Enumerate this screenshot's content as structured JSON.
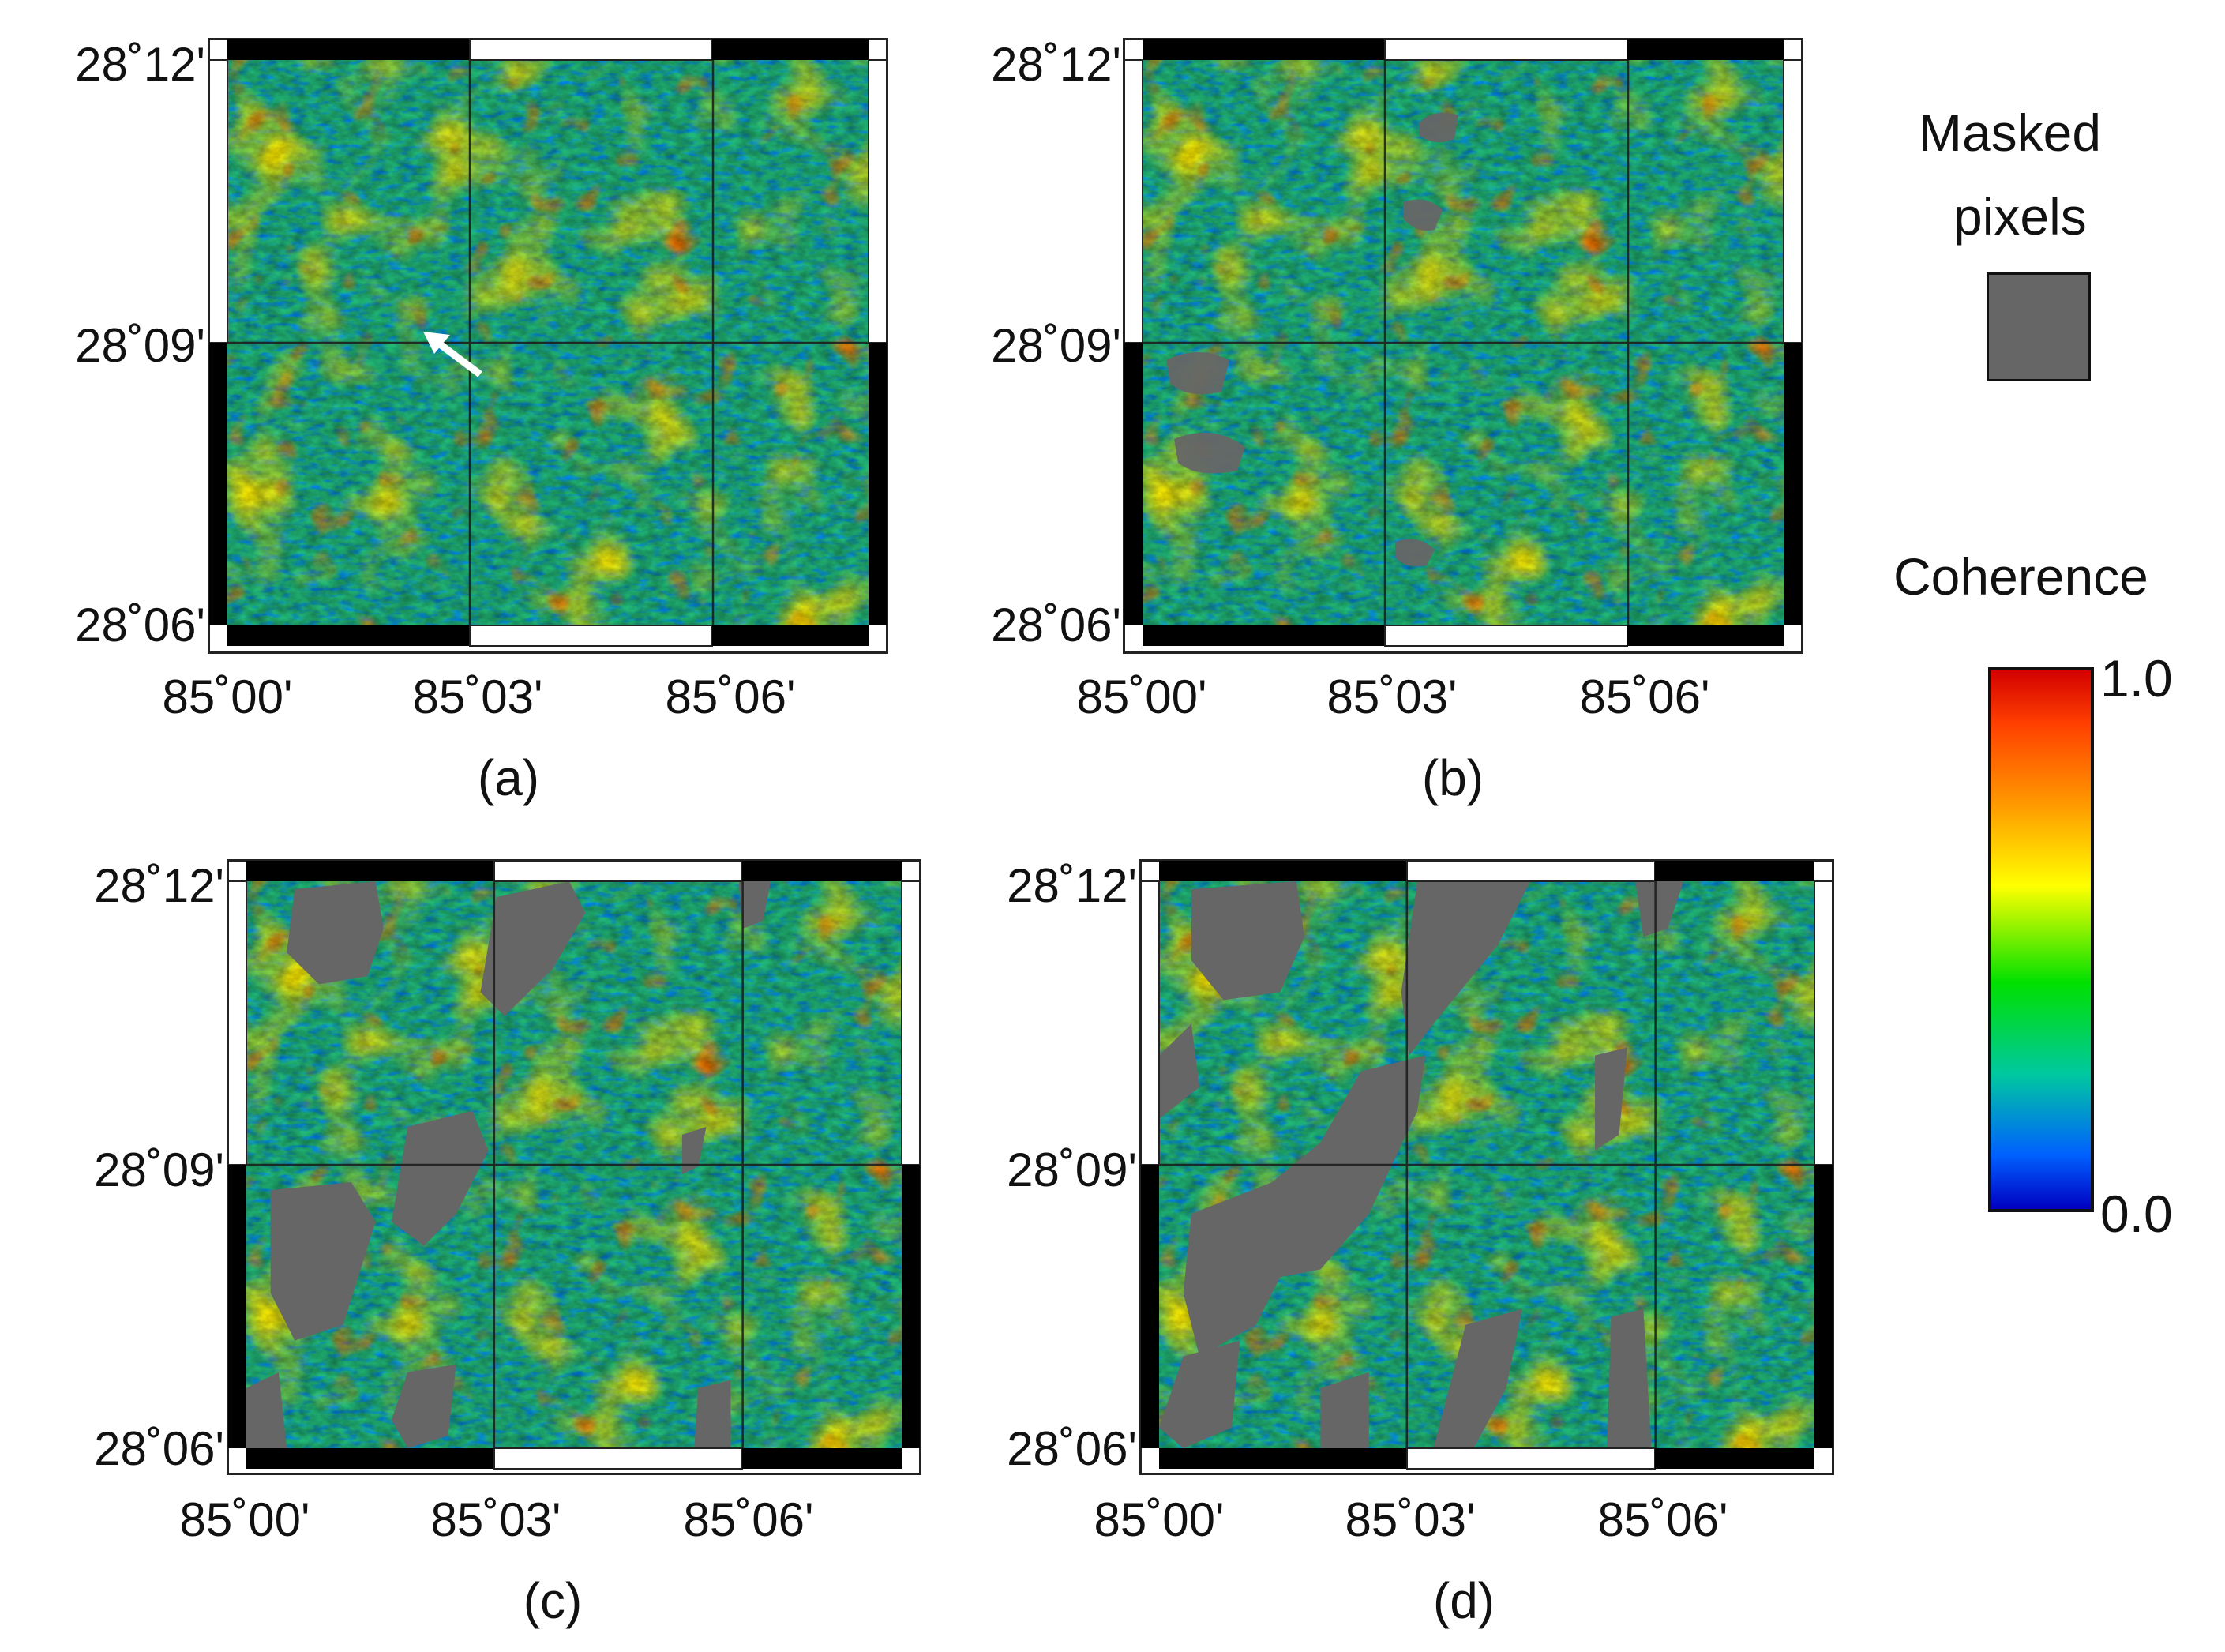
{
  "panels": [
    {
      "id": "a",
      "caption": "(a)",
      "mask": "none",
      "arrow": true
    },
    {
      "id": "b",
      "caption": "(b)",
      "mask": "light",
      "arrow": false
    },
    {
      "id": "c",
      "caption": "(c)",
      "mask": "medium",
      "arrow": false
    },
    {
      "id": "d",
      "caption": "(d)",
      "mask": "heavy",
      "arrow": false
    }
  ],
  "axes": {
    "lat_labels": [
      "28˚12'",
      "28˚09'",
      "28˚06'"
    ],
    "lon_labels": [
      "85˚00'",
      "85˚03'",
      "85˚06'"
    ]
  },
  "legend": {
    "masked_title_line1": "Masked",
    "masked_title_line2": "pixels",
    "masked_color": "#666666",
    "coherence_title": "Coherence",
    "max_label": "1.0",
    "min_label": "0.0"
  },
  "colors": {
    "coherence_low": "#0000c0",
    "coherence_mid": "#00e000",
    "coherence_high": "#d40000",
    "grid": "#1a1a1a"
  }
}
